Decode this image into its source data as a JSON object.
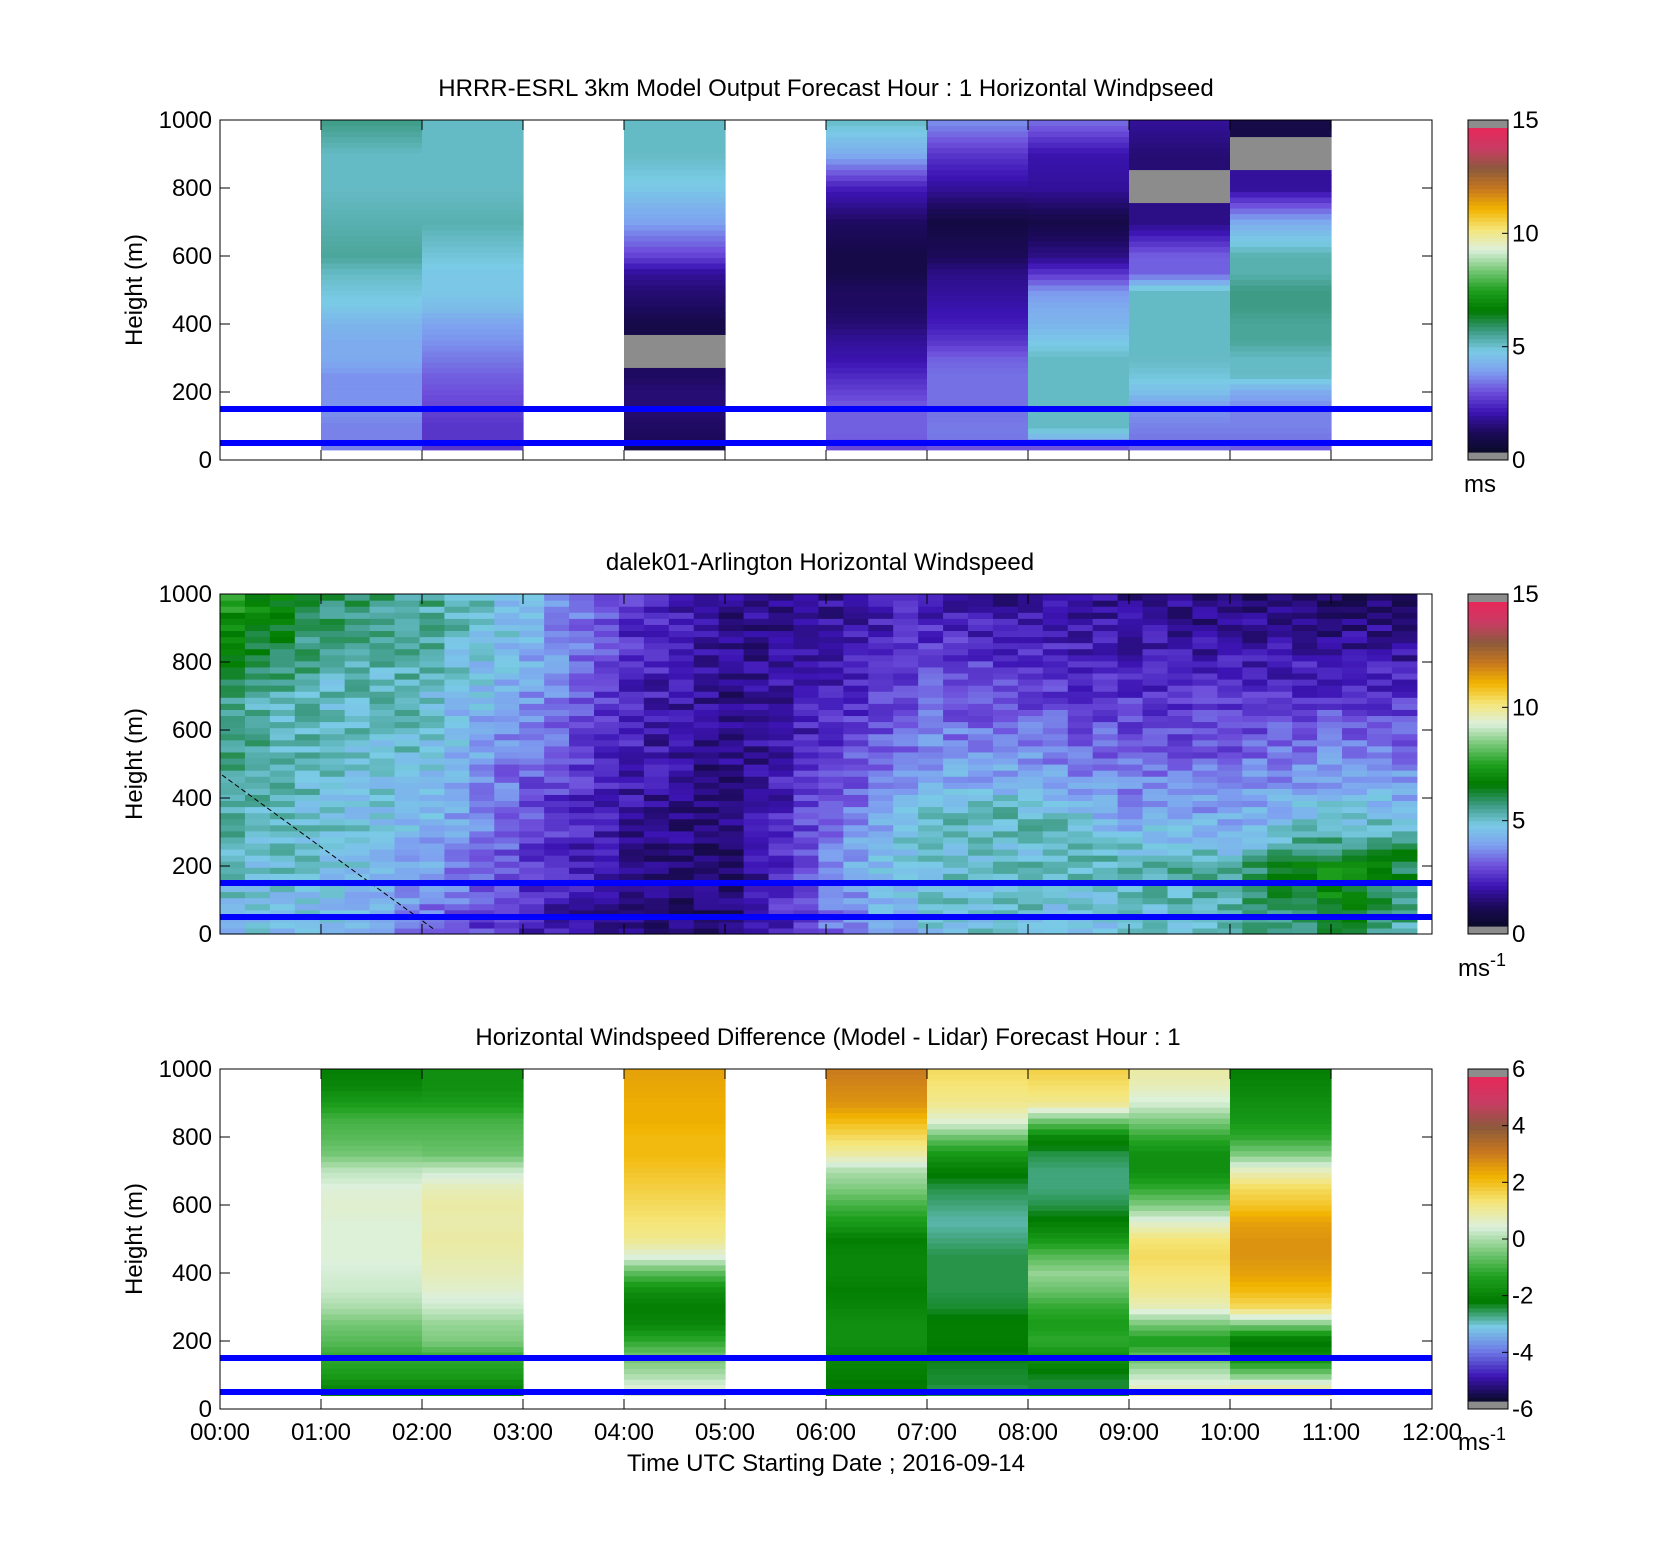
{
  "colors": {
    "guide_line": "#0000ff",
    "missing": "#8c8c8c",
    "speed_colormap": [
      "#0a0a28",
      "#1c0a5a",
      "#3c14b4",
      "#6e50dc",
      "#7ea0f0",
      "#7acbe6",
      "#3c9a82",
      "#007a00",
      "#1ea01e",
      "#78c878",
      "#dcf0dc",
      "#f5e67a",
      "#f2b400",
      "#c8781e",
      "#8c5a3c",
      "#c83c64",
      "#e6285a"
    ],
    "diff_colormap": [
      "#0a0a28",
      "#3c14b4",
      "#6e78e6",
      "#7acbe6",
      "#007a00",
      "#1ea01e",
      "#78c878",
      "#dcf0dc",
      "#f5e67a",
      "#f2b400",
      "#c8781e",
      "#8c5a3c",
      "#c83c64",
      "#e6285a"
    ]
  },
  "xaxis": {
    "label": "Time UTC  Starting Date ; 2016-09-14",
    "ticks": [
      "00:00",
      "01:00",
      "02:00",
      "03:00",
      "04:00",
      "05:00",
      "06:00",
      "07:00",
      "08:00",
      "09:00",
      "10:00",
      "11:00",
      "12:00"
    ]
  },
  "guide_heights_m": [
    50,
    150
  ],
  "chart_data": [
    {
      "type": "heatmap",
      "title": "HRRR-ESRL 3km Model Output   Forecast Hour : 1 Horizontal Windpseed",
      "ylabel": "Height (m)",
      "ylim": [
        0,
        1000
      ],
      "yticks": [
        "0",
        "200",
        "400",
        "600",
        "800",
        "1000"
      ],
      "colorbar": {
        "range": [
          0,
          15
        ],
        "ticks": [
          "0",
          "5",
          "10",
          "15"
        ],
        "unit": "ms"
      },
      "x_hours": [
        0,
        1,
        2,
        3,
        4,
        5,
        6,
        7,
        8,
        9,
        10,
        11,
        12
      ],
      "heights_m": [
        30,
        50,
        75,
        100,
        150,
        200,
        250,
        300,
        350,
        400,
        450,
        500,
        550,
        600,
        700,
        800,
        900,
        1000
      ],
      "columns": [
        {
          "hour": 1,
          "values": [
            3.4,
            3.4,
            3.4,
            3.4,
            3.6,
            3.6,
            3.6,
            4.0,
            4.0,
            4.2,
            4.6,
            4.8,
            5.0,
            5.4,
            5.2,
            5.0,
            5.0,
            5.6
          ]
        },
        {
          "hour": 2,
          "values": [
            2.4,
            2.4,
            2.4,
            2.4,
            2.6,
            2.8,
            3.0,
            3.3,
            3.6,
            3.8,
            4.4,
            4.6,
            4.6,
            4.8,
            5.2,
            5.0,
            5.0,
            5.0
          ]
        },
        {
          "hour": 4,
          "values": [
            0.4,
            0.8,
            1.0,
            1.0,
            1.2,
            1.2,
            1.0,
            null,
            null,
            0.6,
            1.0,
            1.2,
            1.6,
            2.6,
            3.8,
            4.6,
            5.0,
            5.0
          ]
        },
        {
          "hour": 6,
          "values": [
            2.6,
            2.8,
            3.0,
            3.0,
            3.0,
            2.6,
            2.2,
            1.8,
            1.6,
            1.2,
            1.0,
            1.0,
            0.6,
            0.6,
            1.0,
            2.0,
            4.0,
            5.0
          ]
        },
        {
          "hour": 7,
          "values": [
            2.6,
            3.2,
            3.3,
            3.3,
            3.2,
            3.2,
            3.2,
            3.0,
            2.4,
            2.0,
            1.8,
            1.6,
            1.4,
            0.9,
            0.5,
            1.6,
            2.4,
            3.6
          ]
        },
        {
          "hour": 8,
          "values": [
            2.6,
            3.2,
            4.6,
            5.0,
            5.0,
            5.0,
            5.0,
            5.0,
            4.6,
            4.2,
            4.0,
            3.6,
            2.4,
            1.4,
            0.6,
            1.6,
            1.8,
            3.2
          ]
        },
        {
          "hour": 9,
          "values": [
            3.0,
            3.2,
            3.3,
            3.4,
            3.6,
            4.4,
            4.8,
            5.0,
            5.0,
            5.0,
            5.0,
            5.0,
            3.0,
            3.0,
            1.4,
            null,
            1.2,
            1.6
          ]
        },
        {
          "hour": 10,
          "values": [
            2.8,
            3.2,
            3.3,
            3.4,
            3.4,
            4.0,
            5.0,
            5.0,
            5.4,
            5.4,
            5.6,
            5.6,
            5.2,
            5.2,
            4.0,
            1.6,
            null,
            0.6
          ]
        }
      ]
    },
    {
      "type": "heatmap",
      "title": "dalek01-Arlington  Horizontal Windspeed",
      "ylabel": "Height (m)",
      "ylim": [
        0,
        1000
      ],
      "yticks": [
        "0",
        "200",
        "400",
        "600",
        "800",
        "1000"
      ],
      "colorbar": {
        "range": [
          0,
          15
        ],
        "ticks": [
          "0",
          "5",
          "10",
          "15"
        ],
        "unit": "ms",
        "unit_superscript": "-1"
      },
      "x_hours": [
        0,
        1,
        2,
        3,
        4,
        5,
        6,
        7,
        8,
        9,
        10,
        11,
        12
      ],
      "time_span_hours": [
        0,
        11.85
      ],
      "profiles": [
        {
          "hour": 0.1,
          "top_speed": 7.5,
          "jet_height_m": 700,
          "jet_speed": 5.5,
          "surface_speed": 4.5
        },
        {
          "hour": 1.0,
          "top_speed": 6.0,
          "jet_height_m": 750,
          "jet_speed": 5.0,
          "surface_speed": 4.5
        },
        {
          "hour": 2.0,
          "top_speed": 5.5,
          "jet_height_m": 750,
          "jet_speed": 5.0,
          "surface_speed": 3.2
        },
        {
          "hour": 3.0,
          "top_speed": 4.5,
          "jet_height_m": 500,
          "jet_speed": 3.0,
          "surface_speed": 2.0
        },
        {
          "hour": 4.0,
          "top_speed": 2.5,
          "jet_height_m": 300,
          "jet_speed": 1.5,
          "surface_speed": 1.2
        },
        {
          "hour": 5.0,
          "top_speed": 1.5,
          "jet_height_m": 200,
          "jet_speed": 1.0,
          "surface_speed": 1.0
        },
        {
          "hour": 6.0,
          "top_speed": 1.5,
          "jet_height_m": 250,
          "jet_speed": 3.5,
          "surface_speed": 3.0
        },
        {
          "hour": 7.0,
          "top_speed": 2.0,
          "jet_height_m": 350,
          "jet_speed": 5.0,
          "surface_speed": 4.5
        },
        {
          "hour": 8.0,
          "top_speed": 1.5,
          "jet_height_m": 400,
          "jet_speed": 5.0,
          "surface_speed": 4.8
        },
        {
          "hour": 9.0,
          "top_speed": 1.5,
          "jet_height_m": 250,
          "jet_speed": 5.0,
          "surface_speed": 4.5
        },
        {
          "hour": 10.0,
          "top_speed": 1.2,
          "jet_height_m": 200,
          "jet_speed": 5.5,
          "surface_speed": 5.0
        },
        {
          "hour": 11.0,
          "top_speed": 1.0,
          "jet_height_m": 200,
          "jet_speed": 7.0,
          "surface_speed": 6.0
        },
        {
          "hour": 11.85,
          "top_speed": 1.0,
          "jet_height_m": 250,
          "jet_speed": 6.0,
          "surface_speed": 5.0
        }
      ]
    },
    {
      "type": "heatmap",
      "title": "Horizontal Windspeed Difference (Model - Lidar) Forecast Hour : 1",
      "ylabel": "Height (m)",
      "ylim": [
        0,
        1000
      ],
      "yticks": [
        "0",
        "200",
        "400",
        "600",
        "800",
        "1000"
      ],
      "colorbar": {
        "range": [
          -6,
          6
        ],
        "ticks": [
          "-6",
          "-4",
          "-2",
          "0",
          "2",
          "4",
          "6"
        ],
        "unit": "ms",
        "unit_superscript": "-1"
      },
      "x_hours": [
        0,
        1,
        2,
        3,
        4,
        5,
        6,
        7,
        8,
        9,
        10,
        11,
        12
      ],
      "heights_m": [
        40,
        60,
        80,
        100,
        150,
        200,
        250,
        300,
        350,
        400,
        450,
        500,
        550,
        600,
        650,
        700,
        750,
        800,
        850,
        900,
        950,
        1000
      ],
      "columns": [
        {
          "hour": 1,
          "values": [
            -2.0,
            -2.0,
            -1.8,
            -1.5,
            -1.2,
            -0.8,
            -0.5,
            0.0,
            0.3,
            0.4,
            0.5,
            0.5,
            0.5,
            0.6,
            0.5,
            0.2,
            -0.5,
            -0.8,
            -1.0,
            -1.5,
            -2.0,
            -2.2
          ]
        },
        {
          "hour": 2,
          "values": [
            -2.0,
            -2.0,
            -1.8,
            -1.5,
            -1.2,
            -0.4,
            -0.2,
            0.3,
            0.6,
            0.8,
            0.9,
            1.0,
            0.9,
            1.0,
            0.8,
            0.3,
            -0.6,
            -0.8,
            -1.0,
            -1.5,
            -1.8,
            -1.8
          ]
        },
        {
          "hour": 4,
          "values": [
            0.8,
            0.6,
            0.3,
            0.0,
            -0.5,
            -1.2,
            -2.0,
            -2.2,
            -1.8,
            -0.8,
            0.5,
            1.2,
            1.4,
            1.6,
            1.8,
            2.0,
            2.2,
            2.2,
            2.4,
            2.4,
            2.5,
            2.6
          ]
        },
        {
          "hour": 6,
          "values": [
            -2.2,
            -2.3,
            -2.3,
            -2.2,
            -2.0,
            -1.8,
            -1.8,
            -2.0,
            -2.2,
            -2.0,
            -2.0,
            -2.2,
            -1.5,
            -1.0,
            -0.4,
            0.0,
            1.0,
            1.6,
            2.2,
            2.8,
            3.0,
            3.2
          ]
        },
        {
          "hour": 7,
          "values": [
            -2.5,
            -2.6,
            -2.5,
            -2.5,
            -2.4,
            -2.2,
            -2.2,
            -2.5,
            -2.6,
            -2.6,
            -2.6,
            -2.8,
            -3.0,
            -2.8,
            -2.6,
            -2.2,
            -1.6,
            -0.6,
            0.6,
            1.2,
            1.4,
            1.6
          ]
        },
        {
          "hour": 8,
          "values": [
            -2.4,
            -2.5,
            -2.5,
            -2.4,
            -1.8,
            -1.2,
            -1.5,
            -1.2,
            -0.6,
            -0.2,
            -0.8,
            -1.6,
            -2.2,
            -2.6,
            -2.8,
            -2.8,
            -2.6,
            -2.0,
            -0.5,
            1.2,
            1.5,
            1.8
          ]
        },
        {
          "hour": 9,
          "values": [
            1.2,
            0.8,
            0.5,
            0.2,
            -0.6,
            -1.5,
            -0.5,
            0.8,
            1.2,
            1.4,
            1.6,
            1.4,
            0.6,
            -0.4,
            -1.2,
            -1.8,
            -1.8,
            -1.2,
            -0.4,
            0.4,
            0.8,
            1.0
          ]
        },
        {
          "hour": 10,
          "values": [
            1.4,
            1.0,
            0.4,
            -0.4,
            -1.8,
            -2.4,
            -0.4,
            1.6,
            2.2,
            2.6,
            2.8,
            2.8,
            2.6,
            2.0,
            1.6,
            0.8,
            -0.4,
            -1.2,
            -1.6,
            -1.8,
            -2.0,
            -2.2
          ]
        }
      ]
    }
  ]
}
